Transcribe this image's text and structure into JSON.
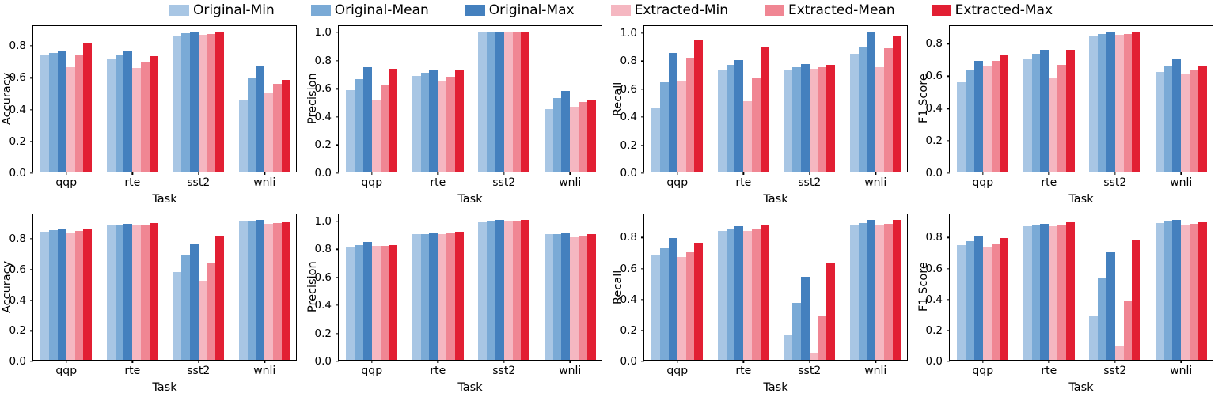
{
  "legend": {
    "position": "top-center",
    "entries": [
      {
        "label": "Original-Min",
        "color": "#a8c6e4"
      },
      {
        "label": "Original-Mean",
        "color": "#7aaad6"
      },
      {
        "label": "Original-Max",
        "color": "#4480be"
      },
      {
        "label": "Extracted-Min",
        "color": "#f5b7c1"
      },
      {
        "label": "Extracted-Mean",
        "color": "#f08693"
      },
      {
        "label": "Extracted-Max",
        "color": "#e21f33"
      }
    ]
  },
  "chart_data": [
    {
      "type": "bar",
      "row": 1,
      "col": 1,
      "ylabel": "Accuracy",
      "xlabel": "Task",
      "categories": [
        "qqp",
        "rte",
        "sst2",
        "wnli"
      ],
      "ylim": [
        0,
        0.925
      ],
      "yticks": [
        0.0,
        0.2,
        0.4,
        0.6,
        0.8
      ],
      "grid": false,
      "series": [
        {
          "name": "Original-Min",
          "values": [
            0.73,
            0.705,
            0.855,
            0.45
          ]
        },
        {
          "name": "Original-Mean",
          "values": [
            0.745,
            0.73,
            0.87,
            0.585
          ]
        },
        {
          "name": "Original-Max",
          "values": [
            0.755,
            0.76,
            0.88,
            0.66
          ]
        },
        {
          "name": "Extracted-Min",
          "values": [
            0.655,
            0.65,
            0.86,
            0.49
          ]
        },
        {
          "name": "Extracted-Mean",
          "values": [
            0.735,
            0.685,
            0.865,
            0.55
          ]
        },
        {
          "name": "Extracted-Max",
          "values": [
            0.805,
            0.725,
            0.875,
            0.575
          ]
        }
      ]
    },
    {
      "type": "bar",
      "row": 1,
      "col": 2,
      "ylabel": "Precision",
      "xlabel": "Task",
      "categories": [
        "qqp",
        "rte",
        "sst2",
        "wnli"
      ],
      "ylim": [
        0,
        1.045
      ],
      "yticks": [
        0.0,
        0.2,
        0.4,
        0.6,
        0.8,
        1.0
      ],
      "grid": false,
      "series": [
        {
          "name": "Original-Min",
          "values": [
            0.58,
            0.68,
            0.99,
            0.445
          ]
        },
        {
          "name": "Original-Mean",
          "values": [
            0.66,
            0.7,
            0.99,
            0.525
          ]
        },
        {
          "name": "Original-Max",
          "values": [
            0.74,
            0.725,
            0.99,
            0.575
          ]
        },
        {
          "name": "Extracted-Min",
          "values": [
            0.505,
            0.64,
            0.99,
            0.46
          ]
        },
        {
          "name": "Extracted-Mean",
          "values": [
            0.62,
            0.675,
            0.99,
            0.495
          ]
        },
        {
          "name": "Extracted-Max",
          "values": [
            0.73,
            0.72,
            0.99,
            0.51
          ]
        }
      ]
    },
    {
      "type": "bar",
      "row": 1,
      "col": 3,
      "ylabel": "Recall",
      "xlabel": "Task",
      "categories": [
        "qqp",
        "rte",
        "sst2",
        "wnli"
      ],
      "ylim": [
        0,
        1.05
      ],
      "yticks": [
        0.0,
        0.2,
        0.4,
        0.6,
        0.8,
        1.0
      ],
      "grid": false,
      "series": [
        {
          "name": "Original-Min",
          "values": [
            0.45,
            0.72,
            0.725,
            0.84
          ]
        },
        {
          "name": "Original-Mean",
          "values": [
            0.64,
            0.76,
            0.745,
            0.89
          ]
        },
        {
          "name": "Original-Max",
          "values": [
            0.845,
            0.795,
            0.77,
            1.0
          ]
        },
        {
          "name": "Extracted-Min",
          "values": [
            0.645,
            0.505,
            0.735,
            0.745
          ]
        },
        {
          "name": "Extracted-Mean",
          "values": [
            0.815,
            0.67,
            0.745,
            0.88
          ]
        },
        {
          "name": "Extracted-Max",
          "values": [
            0.935,
            0.885,
            0.76,
            0.965
          ]
        }
      ]
    },
    {
      "type": "bar",
      "row": 1,
      "col": 4,
      "ylabel": "F1 Score",
      "xlabel": "Task",
      "categories": [
        "qqp",
        "rte",
        "sst2",
        "wnli"
      ],
      "ylim": [
        0,
        0.91
      ],
      "yticks": [
        0.0,
        0.2,
        0.4,
        0.6,
        0.8
      ],
      "grid": false,
      "series": [
        {
          "name": "Original-Min",
          "values": [
            0.555,
            0.695,
            0.835,
            0.615
          ]
        },
        {
          "name": "Original-Mean",
          "values": [
            0.625,
            0.73,
            0.85,
            0.655
          ]
        },
        {
          "name": "Original-Max",
          "values": [
            0.685,
            0.755,
            0.865,
            0.695
          ]
        },
        {
          "name": "Extracted-Min",
          "values": [
            0.655,
            0.575,
            0.845,
            0.605
          ]
        },
        {
          "name": "Extracted-Mean",
          "values": [
            0.685,
            0.66,
            0.85,
            0.63
          ]
        },
        {
          "name": "Extracted-Max",
          "values": [
            0.725,
            0.755,
            0.86,
            0.65
          ]
        }
      ]
    },
    {
      "type": "bar",
      "row": 2,
      "col": 1,
      "ylabel": "Accuracy",
      "xlabel": "Task",
      "categories": [
        "qqp",
        "rte",
        "sst2",
        "wnli"
      ],
      "ylim": [
        0,
        0.96
      ],
      "yticks": [
        0.0,
        0.2,
        0.4,
        0.6,
        0.8
      ],
      "grid": false,
      "series": [
        {
          "name": "Original-Min",
          "values": [
            0.835,
            0.88,
            0.575,
            0.905
          ]
        },
        {
          "name": "Original-Mean",
          "values": [
            0.845,
            0.885,
            0.68,
            0.91
          ]
        },
        {
          "name": "Original-Max",
          "values": [
            0.855,
            0.89,
            0.76,
            0.915
          ]
        },
        {
          "name": "Extracted-Min",
          "values": [
            0.83,
            0.875,
            0.515,
            0.89
          ]
        },
        {
          "name": "Extracted-Mean",
          "values": [
            0.84,
            0.885,
            0.635,
            0.895
          ]
        },
        {
          "name": "Extracted-Max",
          "values": [
            0.855,
            0.895,
            0.81,
            0.9
          ]
        }
      ]
    },
    {
      "type": "bar",
      "row": 2,
      "col": 2,
      "ylabel": "Precision",
      "xlabel": "Task",
      "categories": [
        "qqp",
        "rte",
        "sst2",
        "wnli"
      ],
      "ylim": [
        0,
        1.05
      ],
      "yticks": [
        0.0,
        0.2,
        0.4,
        0.6,
        0.8,
        1.0
      ],
      "grid": false,
      "series": [
        {
          "name": "Original-Min",
          "values": [
            0.805,
            0.9,
            0.98,
            0.9
          ]
        },
        {
          "name": "Original-Mean",
          "values": [
            0.82,
            0.9,
            0.99,
            0.9
          ]
        },
        {
          "name": "Original-Max",
          "values": [
            0.84,
            0.905,
            1.0,
            0.905
          ]
        },
        {
          "name": "Extracted-Min",
          "values": [
            0.815,
            0.895,
            0.99,
            0.875
          ]
        },
        {
          "name": "Extracted-Mean",
          "values": [
            0.815,
            0.905,
            0.995,
            0.885
          ]
        },
        {
          "name": "Extracted-Max",
          "values": [
            0.82,
            0.915,
            1.0,
            0.9
          ]
        }
      ]
    },
    {
      "type": "bar",
      "row": 2,
      "col": 3,
      "ylabel": "Recall",
      "xlabel": "Task",
      "categories": [
        "qqp",
        "rte",
        "sst2",
        "wnli"
      ],
      "ylim": [
        0,
        0.95
      ],
      "yticks": [
        0.0,
        0.2,
        0.4,
        0.6,
        0.8
      ],
      "grid": false,
      "series": [
        {
          "name": "Original-Min",
          "values": [
            0.675,
            0.835,
            0.16,
            0.87
          ]
        },
        {
          "name": "Original-Mean",
          "values": [
            0.72,
            0.845,
            0.37,
            0.885
          ]
        },
        {
          "name": "Original-Max",
          "values": [
            0.785,
            0.865,
            0.535,
            0.905
          ]
        },
        {
          "name": "Extracted-Min",
          "values": [
            0.665,
            0.835,
            0.045,
            0.875
          ]
        },
        {
          "name": "Extracted-Mean",
          "values": [
            0.695,
            0.85,
            0.285,
            0.88
          ]
        },
        {
          "name": "Extracted-Max",
          "values": [
            0.755,
            0.87,
            0.63,
            0.905
          ]
        }
      ]
    },
    {
      "type": "bar",
      "row": 2,
      "col": 4,
      "ylabel": "F1 Score",
      "xlabel": "Task",
      "categories": [
        "qqp",
        "rte",
        "sst2",
        "wnli"
      ],
      "ylim": [
        0,
        0.95
      ],
      "yticks": [
        0.0,
        0.2,
        0.4,
        0.6,
        0.8
      ],
      "grid": false,
      "series": [
        {
          "name": "Original-Min",
          "values": [
            0.74,
            0.865,
            0.28,
            0.885
          ]
        },
        {
          "name": "Original-Mean",
          "values": [
            0.765,
            0.875,
            0.525,
            0.895
          ]
        },
        {
          "name": "Original-Max",
          "values": [
            0.795,
            0.88,
            0.695,
            0.905
          ]
        },
        {
          "name": "Extracted-Min",
          "values": [
            0.73,
            0.865,
            0.09,
            0.87
          ]
        },
        {
          "name": "Extracted-Mean",
          "values": [
            0.75,
            0.875,
            0.385,
            0.88
          ]
        },
        {
          "name": "Extracted-Max",
          "values": [
            0.785,
            0.89,
            0.77,
            0.89
          ]
        }
      ]
    }
  ]
}
